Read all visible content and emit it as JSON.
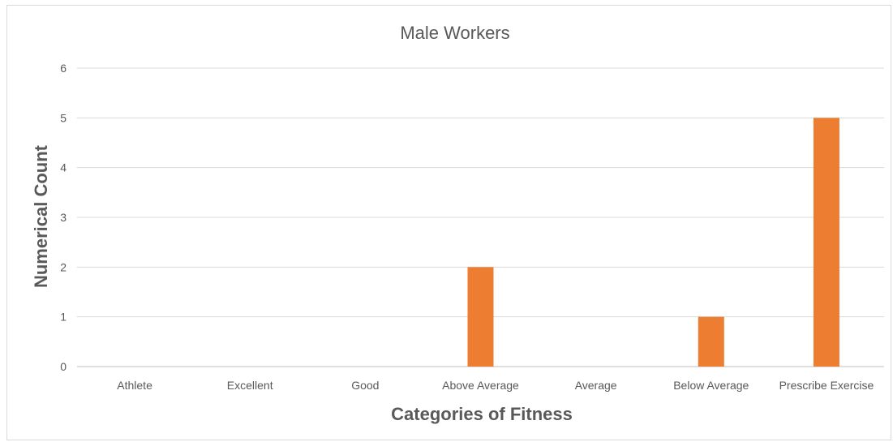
{
  "chart_data": {
    "type": "bar",
    "title": "Male Workers",
    "xlabel": "Categories of Fitness",
    "ylabel": "Numerical Count",
    "categories": [
      "Athlete",
      "Excellent",
      "Good",
      "Above Average",
      "Average",
      "Below Average",
      "Prescribe Exercise"
    ],
    "values": [
      0,
      0,
      0,
      2,
      0,
      1,
      5
    ],
    "ylim": [
      0,
      6
    ],
    "yticks": [
      0,
      1,
      2,
      3,
      4,
      5,
      6
    ],
    "grid": true,
    "legend": "none",
    "bar_color": "#ed7d31"
  }
}
